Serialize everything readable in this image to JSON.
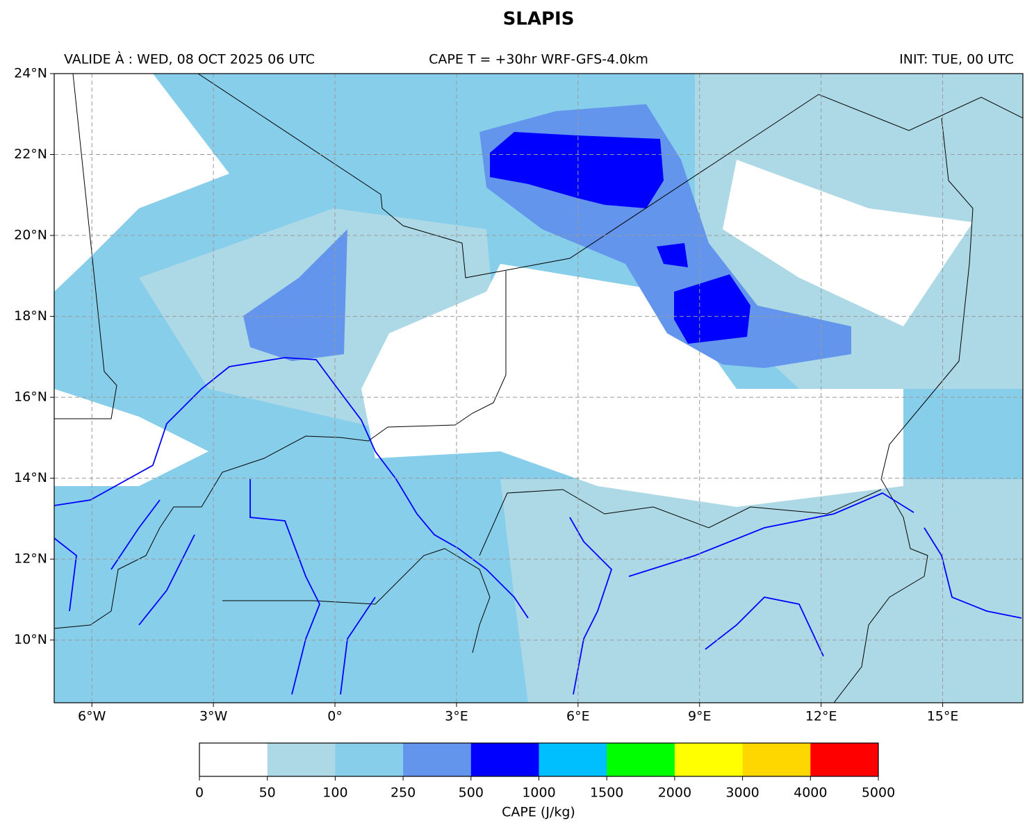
{
  "header": {
    "title": "SLAPIS",
    "valid": "VALIDE À : WED, 08 OCT 2025 06 UTC",
    "center": "CAPE T = +30hr WRF-GFS-4.0km",
    "init": "INIT: TUE, 00 UTC"
  },
  "map": {
    "xlim": [
      -6.93,
      16.98
    ],
    "ylim": [
      8.45,
      24
    ],
    "xticks": [
      {
        "value": -6,
        "label": "6°W"
      },
      {
        "value": -3,
        "label": "3°W"
      },
      {
        "value": 0,
        "label": "0°"
      },
      {
        "value": 3,
        "label": "3°E"
      },
      {
        "value": 6,
        "label": "6°E"
      },
      {
        "value": 9,
        "label": "9°E"
      },
      {
        "value": 12,
        "label": "12°E"
      },
      {
        "value": 15,
        "label": "15°E"
      }
    ],
    "yticks": [
      {
        "value": 24,
        "label": "24°N"
      },
      {
        "value": 22,
        "label": "22°N"
      },
      {
        "value": 20,
        "label": "20°N"
      },
      {
        "value": 18,
        "label": "18°N"
      },
      {
        "value": 16,
        "label": "16°N"
      },
      {
        "value": 14,
        "label": "14°N"
      },
      {
        "value": 12,
        "label": "12°N"
      },
      {
        "value": 10,
        "label": "10°N"
      }
    ],
    "grid": true
  },
  "colorbar": {
    "label": "CAPE (J/kg)",
    "levels": [
      0,
      50,
      100,
      250,
      500,
      1000,
      1500,
      2000,
      3000,
      4000,
      5000
    ],
    "colors": [
      "#ffffff",
      "#add8e6",
      "#87ceeb",
      "#6495ed",
      "#0000ff",
      "#00bfff",
      "#00ff00",
      "#ffff00",
      "#ffd700",
      "#ff0000"
    ]
  }
}
